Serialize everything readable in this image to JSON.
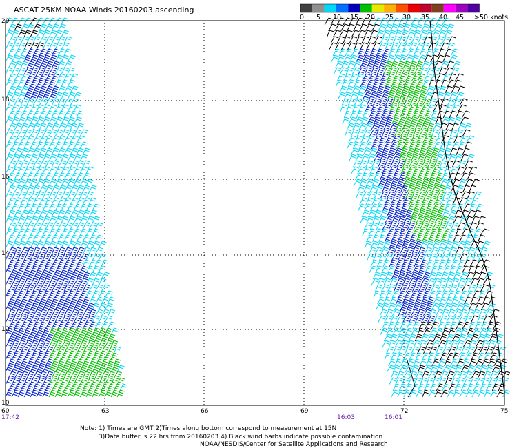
{
  "title": "ASCAT 25KM NOAA Winds 20160203 ascending",
  "legend": {
    "labels": [
      "0",
      "5",
      "10",
      "15",
      "20",
      "25",
      "30",
      "35",
      "40",
      "45",
      ">50 knots"
    ],
    "colors": [
      "#404040",
      "#909090",
      "#00d8f8",
      "#0070ff",
      "#0000c0",
      "#00c000",
      "#e8e800",
      "#ffb000",
      "#ff5000",
      "#e80000",
      "#c00030",
      "#804020",
      "#ff00ff",
      "#a000c0",
      "#5000a0"
    ]
  },
  "latitudes": [
    "20",
    "18",
    "16",
    "14",
    "12",
    "10"
  ],
  "longitudes": [
    "60",
    "63",
    "66",
    "69",
    "72",
    "75"
  ],
  "times": [
    "17:42",
    "16:03",
    "16:01"
  ],
  "notes": {
    "line1": "Note: 1) Times are GMT 2)Times along bottom correspond to measurement at 15N",
    "line2": "3)Data buffer is 22 hrs from 20160203 4) Black wind barbs indicate possible contamination",
    "line3": "NOAA/NESDIS/Center for Satellite Applications and Research"
  },
  "barb_colors": {
    "lt10": "#00d8f8",
    "10to15": "#0020d0",
    "15to20": "#00c000",
    "contaminated": "#000000"
  }
}
